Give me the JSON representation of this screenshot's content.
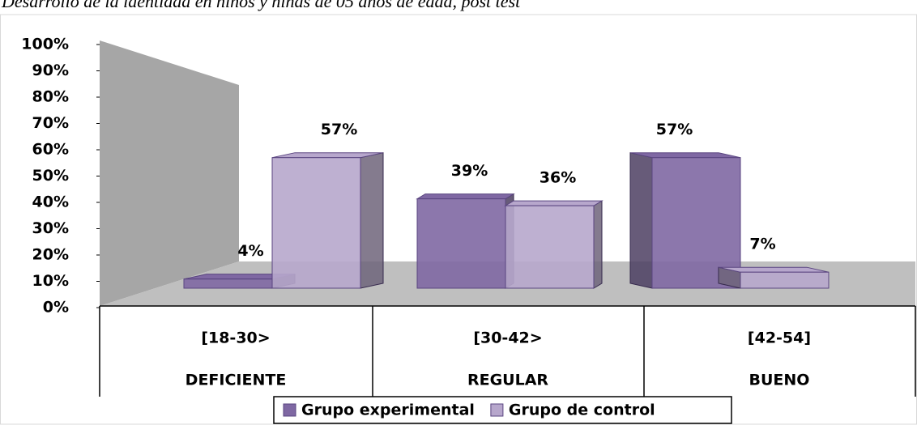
{
  "chart_data": {
    "type": "bar3d",
    "title": "Desarrollo de la identidad en niños y niñas de 05 años de edad, post test",
    "categories": [
      "[18-30>",
      "[30-42>",
      "[42-54]"
    ],
    "category_groups": [
      "DEFICIENTE",
      "REGULAR",
      "BUENO"
    ],
    "series": [
      {
        "name": "Grupo experimental",
        "color": "#7f68a3",
        "values": [
          4,
          39,
          57
        ],
        "value_labels": [
          "4%",
          "39%",
          "57%"
        ]
      },
      {
        "name": "Grupo de control",
        "color": "#b7a7cc",
        "values": [
          57,
          36,
          7
        ],
        "value_labels": [
          "57%",
          "36%",
          "7%"
        ]
      }
    ],
    "ylim": [
      0,
      100
    ],
    "yticks": [
      {
        "value": 0,
        "label": "0%"
      },
      {
        "value": 10,
        "label": "10%"
      },
      {
        "value": 20,
        "label": "20%"
      },
      {
        "value": 30,
        "label": "30%"
      },
      {
        "value": 40,
        "label": "40%"
      },
      {
        "value": 50,
        "label": "50%"
      },
      {
        "value": 60,
        "label": "60%"
      },
      {
        "value": 70,
        "label": "70%"
      },
      {
        "value": 80,
        "label": "80%"
      },
      {
        "value": 90,
        "label": "90%"
      },
      {
        "value": 100,
        "label": "100%"
      }
    ]
  }
}
